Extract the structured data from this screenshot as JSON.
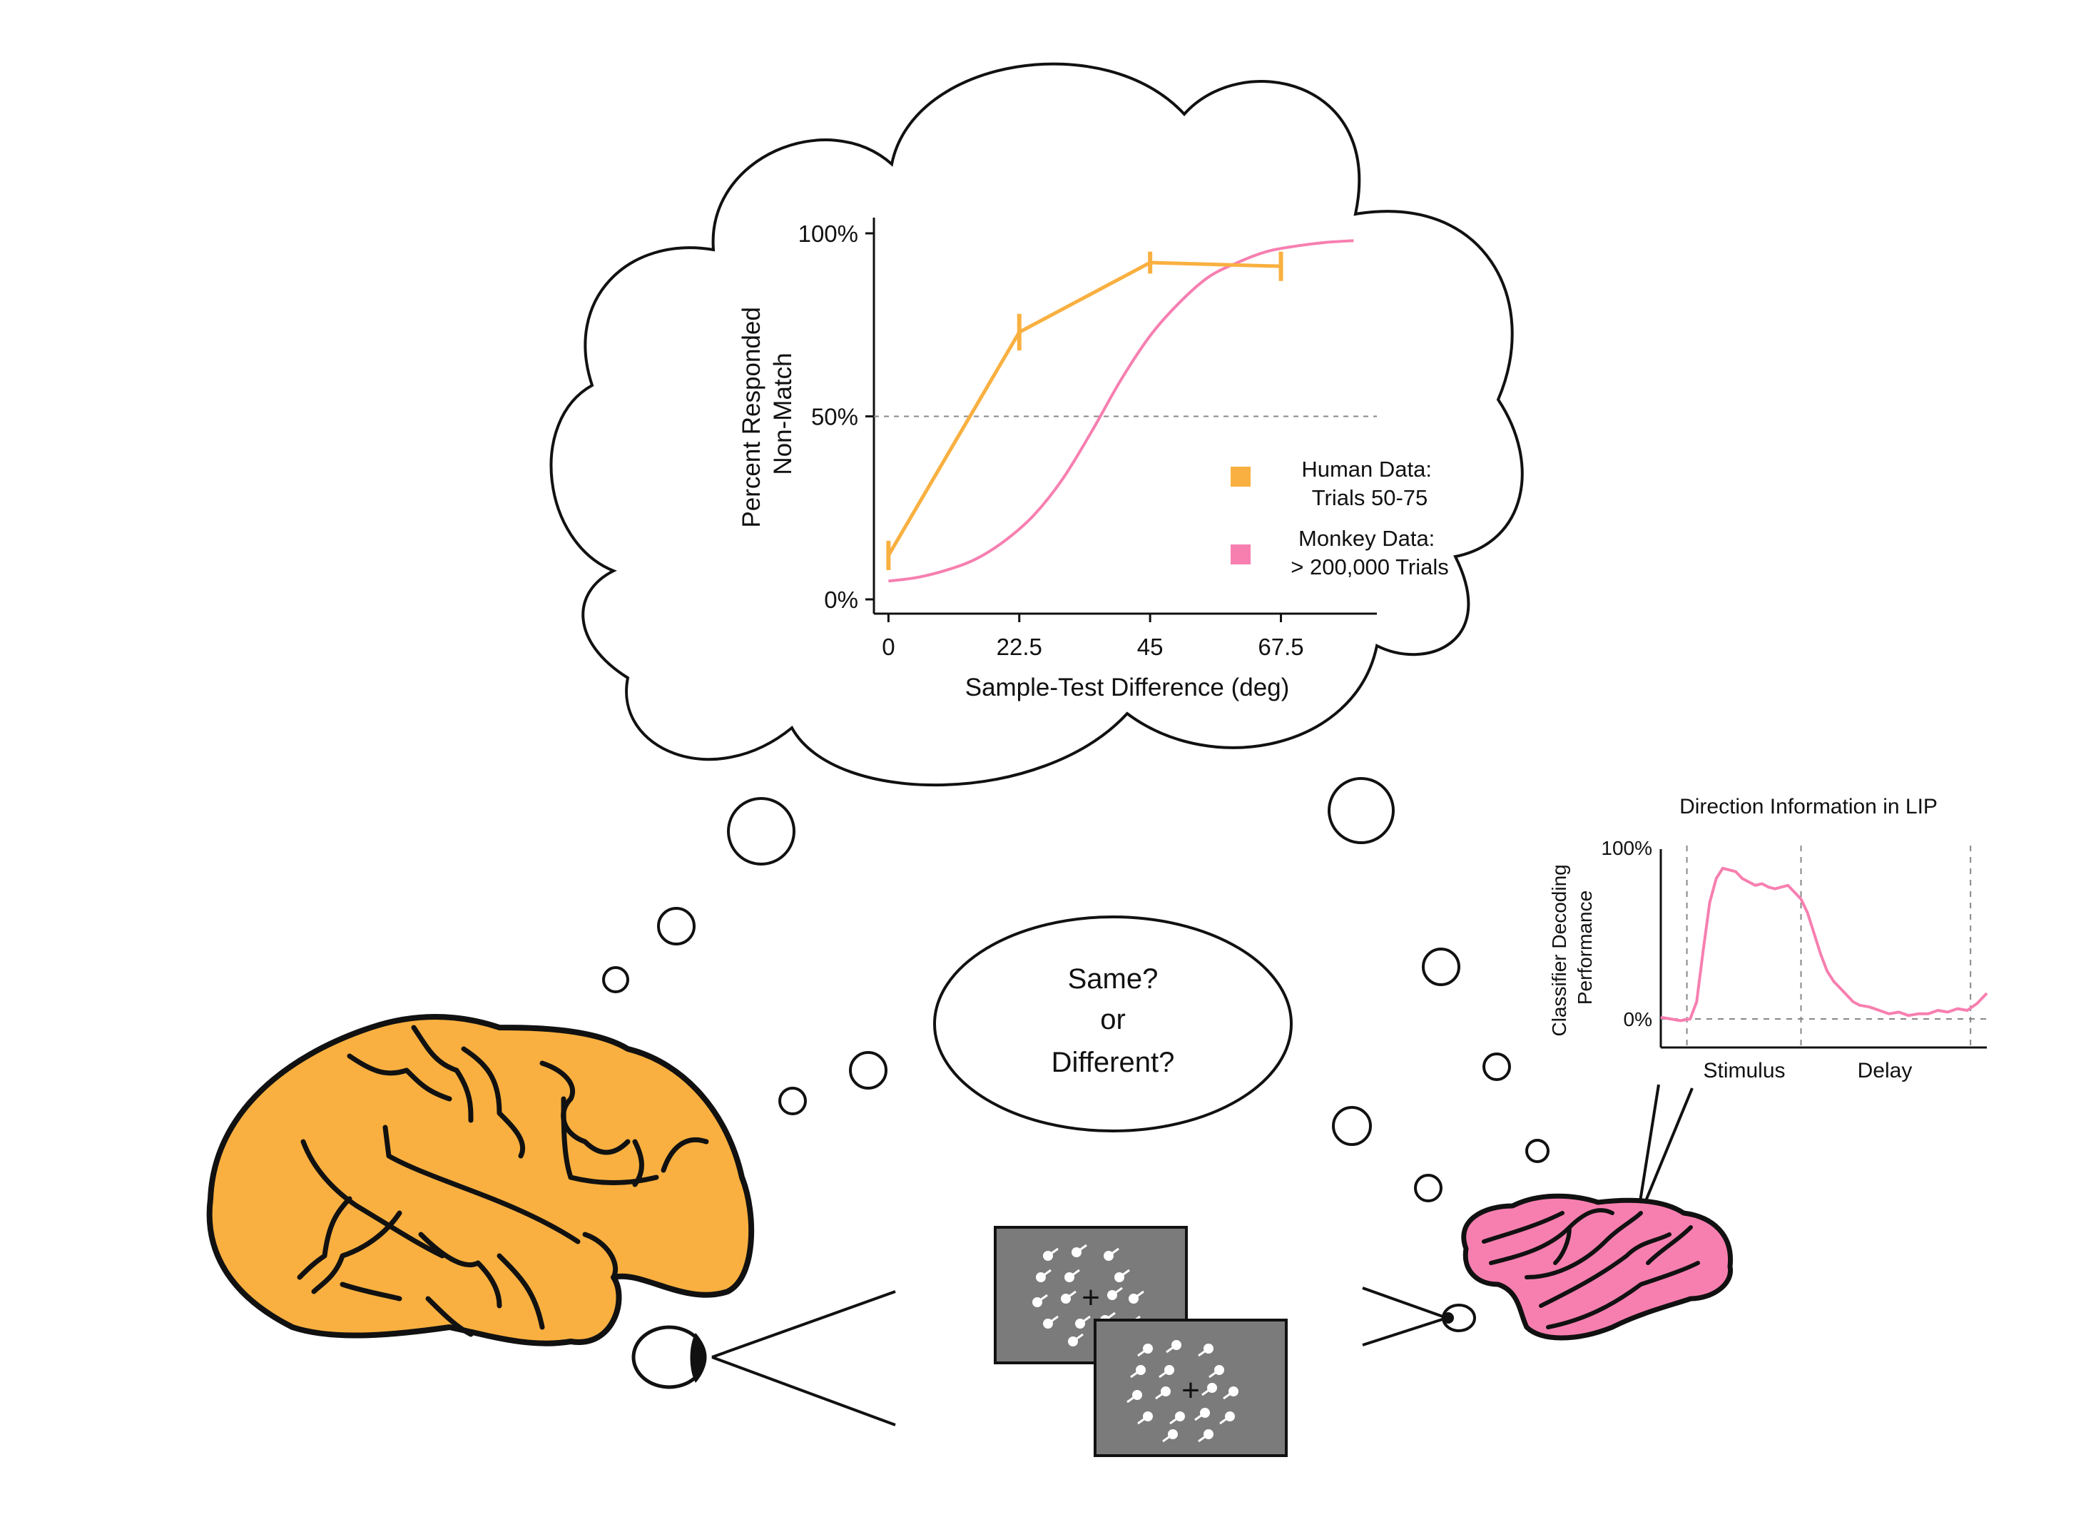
{
  "colors": {
    "human": "#F9B040",
    "monkey": "#F77FB0",
    "outline": "#111111",
    "screen": "#7B7B7B",
    "gridline": "#888888"
  },
  "chart_data": [
    {
      "type": "line",
      "ylabel": "Percent Responded\nNon-Match",
      "xlabel": "Sample-Test Difference (deg)",
      "xticks": [
        "0",
        "22.5",
        "45",
        "67.5"
      ],
      "yticks": [
        "0%",
        "50%",
        "100%"
      ],
      "xlim": [
        -2.5,
        84
      ],
      "ylim": [
        0,
        100
      ],
      "reference_line": 50,
      "legend_position": "bottom-right",
      "series": [
        {
          "name": "Human Data:\nTrials 50-75",
          "x": [
            0,
            22.5,
            45,
            67.5
          ],
          "y": [
            12,
            73,
            92,
            91
          ],
          "error": [
            4,
            5,
            3,
            4
          ],
          "style": "line-with-errorbars",
          "color": "#F9B040"
        },
        {
          "name": "Monkey Data:\n> 200,000 Trials",
          "x": [
            0,
            5,
            10,
            15,
            20,
            25,
            30,
            35,
            40,
            45,
            50,
            55,
            60,
            65,
            70,
            75,
            80
          ],
          "y": [
            5,
            6,
            8,
            11,
            16,
            23,
            33,
            46,
            60,
            72,
            81,
            88,
            92,
            95,
            96.5,
            97.5,
            98
          ],
          "style": "smooth-line",
          "color": "#F77FB0"
        }
      ]
    },
    {
      "type": "line",
      "title": "Direction Information in LIP",
      "ylabel": "Classifier Decoding\nPerformance",
      "yticks": [
        "0%",
        "100%"
      ],
      "ylim": [
        0,
        100
      ],
      "xlim": [
        0,
        100
      ],
      "epoch_labels": [
        "Stimulus",
        "Delay"
      ],
      "epoch_markers": [
        8,
        43,
        95
      ],
      "series": [
        {
          "name": "",
          "x": [
            0,
            3,
            6,
            9,
            11,
            13,
            15,
            17,
            19,
            21,
            23,
            25,
            27,
            29,
            31,
            33,
            35,
            37,
            39,
            41,
            43,
            45,
            47,
            49,
            51,
            53,
            55,
            57,
            59,
            61,
            64,
            67,
            70,
            73,
            76,
            79,
            82,
            85,
            88,
            91,
            94,
            97,
            100
          ],
          "y": [
            1,
            0,
            -1,
            0,
            10,
            40,
            68,
            82,
            88,
            87,
            86,
            82,
            80,
            78,
            79,
            77,
            76,
            77,
            78,
            74,
            70,
            62,
            50,
            38,
            28,
            22,
            18,
            14,
            10,
            8,
            7,
            5,
            3,
            4,
            2,
            3,
            3,
            5,
            4,
            6,
            5,
            9,
            15
          ],
          "color": "#F77FB0"
        }
      ]
    }
  ],
  "speech_bubble": {
    "line1": "Same?",
    "line2": "or",
    "line3": "Different?"
  },
  "icons": [
    "human-brain-icon",
    "human-eye-icon",
    "monkey-brain-icon",
    "monkey-eye-icon",
    "recording-electrode-icon",
    "moving-dots-stimulus-icon",
    "thought-cloud-icon"
  ]
}
